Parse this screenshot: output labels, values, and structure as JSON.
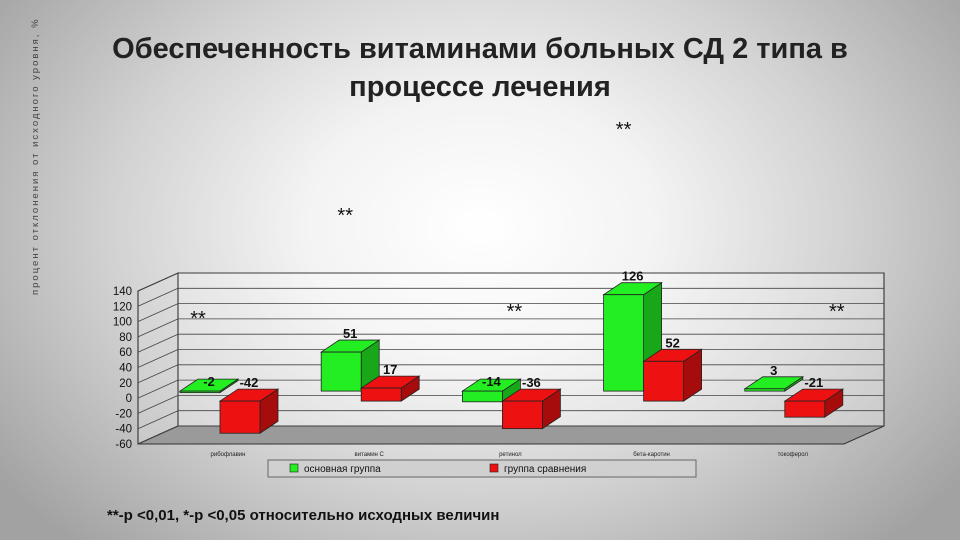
{
  "title_line1": "Обеспеченность витаминами больных СД 2 типа в",
  "title_line2": "процессе лечения",
  "y_axis_label": "процент отклонения от исходного уровня, %",
  "footnote": "**-р <0,01, *-р <0,05 относительно исходных величин",
  "colors": {
    "green": "#22ee22",
    "red": "#ee1111"
  },
  "chart_data": {
    "type": "bar",
    "categories": [
      "рибофлавин",
      "витамин С",
      "ретинол",
      "бета-каротин",
      "токоферол"
    ],
    "series": [
      {
        "name": "основная группа",
        "values": [
          -2,
          51,
          -14,
          126,
          3
        ]
      },
      {
        "name": "группа сравнения",
        "values": [
          -42,
          17,
          -36,
          52,
          -21
        ]
      }
    ],
    "bar_labels": [
      [
        "-2",
        "51",
        "-14",
        "126",
        "3"
      ],
      [
        "-42",
        "17",
        "-36",
        "52",
        "-21"
      ]
    ],
    "ylim": [
      -60,
      140
    ],
    "yticks": [
      "140",
      "120",
      "100",
      "80",
      "60",
      "40",
      "20",
      "0",
      "-20",
      "-40",
      "-60"
    ],
    "annotations": [
      "**",
      "**",
      "**",
      "**",
      "**"
    ],
    "legend_position": "bottom"
  }
}
